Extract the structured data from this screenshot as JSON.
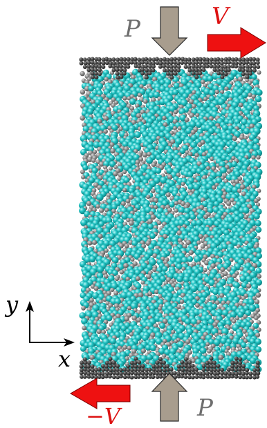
{
  "labels": {
    "pressure_top": "P",
    "pressure_bottom": "P",
    "velocity_top": "V",
    "velocity_bottom": "−V",
    "axis_x": "x",
    "axis_y": "y"
  },
  "colors": {
    "background": "#ffffff",
    "wall_particle": "#4a4a4a",
    "gray_particle": "#8e8e8e",
    "cyan_particle": "#17b8b8",
    "pressure_arrow_fill": "#a89d8e",
    "velocity_arrow_fill": "#ee1111",
    "velocity_label": "#dd1111",
    "pressure_label": "#6e6e6e",
    "axis_color": "#000000"
  },
  "particles": {
    "mix_cyan_fraction": 0.65,
    "wall_tooth_count": 7
  }
}
